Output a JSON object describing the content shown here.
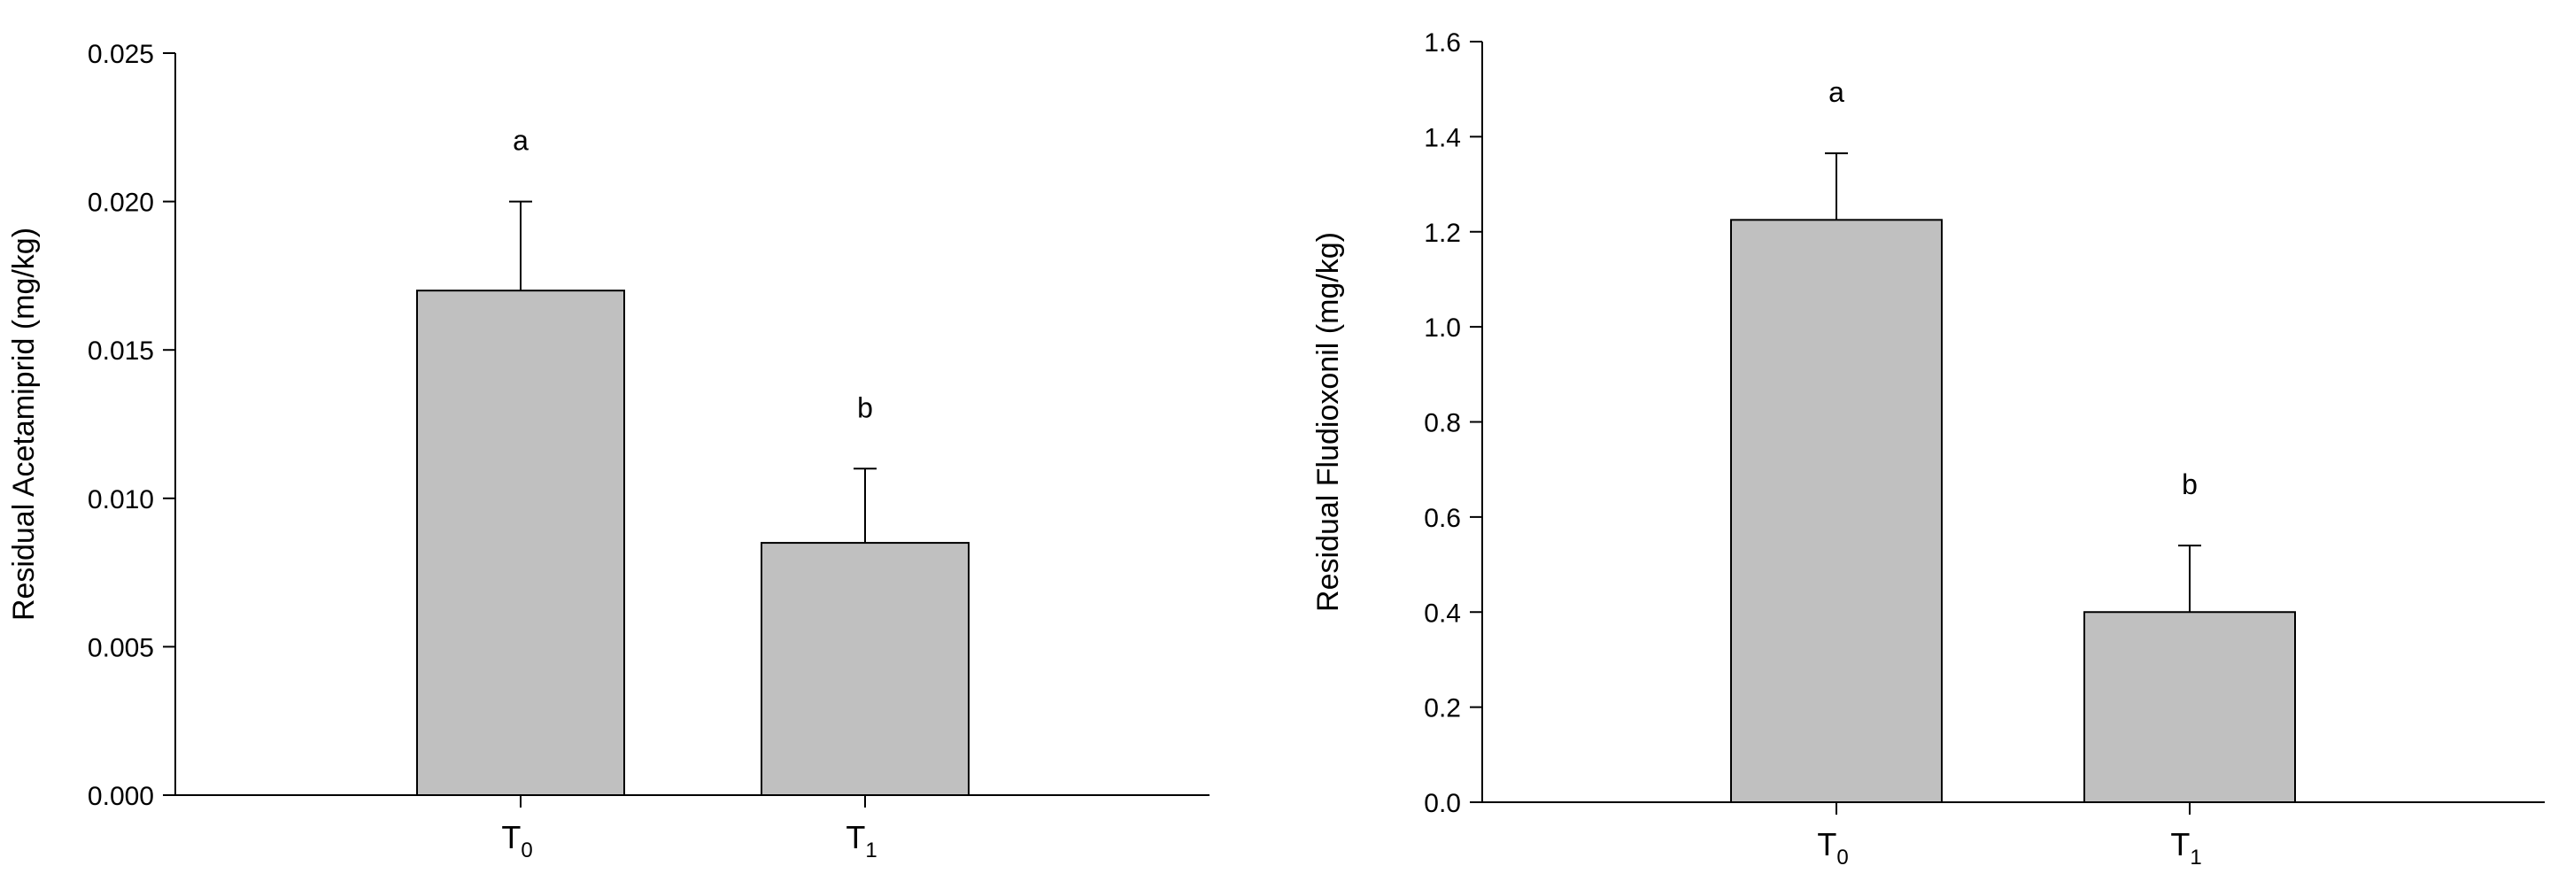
{
  "chart_data": [
    {
      "type": "bar",
      "title": "",
      "xlabel": "",
      "ylabel": "Residual Acetamiprid (mg/kg)",
      "ylim": [
        0,
        0.025
      ],
      "yticks": [
        "0.000",
        "0.005",
        "0.010",
        "0.015",
        "0.020",
        "0.025"
      ],
      "categories": [
        {
          "base": "T",
          "sub": "0"
        },
        {
          "base": "T",
          "sub": "1"
        }
      ],
      "values": [
        0.017,
        0.0085
      ],
      "error_upper": [
        0.02,
        0.011
      ],
      "significance_labels": [
        "a",
        "b"
      ],
      "grid": false,
      "bar_color": "#c0c0c0"
    },
    {
      "type": "bar",
      "title": "",
      "xlabel": "",
      "ylabel": "Residual Fludioxonil (mg/kg)",
      "ylim": [
        0,
        1.6
      ],
      "yticks": [
        "0.0",
        "0.2",
        "0.4",
        "0.6",
        "0.8",
        "1.0",
        "1.2",
        "1.4",
        "1.6"
      ],
      "categories": [
        {
          "base": "T",
          "sub": "0"
        },
        {
          "base": "T",
          "sub": "1"
        }
      ],
      "values": [
        1.225,
        0.4
      ],
      "error_upper": [
        1.365,
        0.54
      ],
      "significance_labels": [
        "a",
        "b"
      ],
      "grid": false,
      "bar_color": "#c0c0c0"
    }
  ]
}
